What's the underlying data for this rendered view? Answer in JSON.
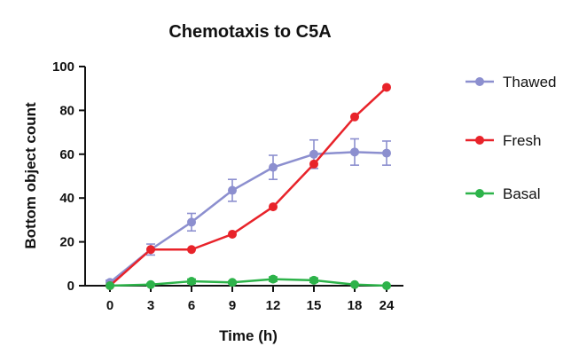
{
  "chart_data": {
    "type": "line",
    "title": "Chemotaxis to C5A",
    "xlabel": "Time (h)",
    "ylabel": "Bottom object count",
    "x_ticks": [
      "0",
      "3",
      "6",
      "9",
      "12",
      "15",
      "18",
      "24"
    ],
    "y_ticks": [
      "0",
      "20",
      "40",
      "60",
      "80",
      "100"
    ],
    "ylim": [
      0,
      100
    ],
    "grid": false,
    "legend_position": "right",
    "series": [
      {
        "name": "Thawed",
        "color": "#8c8fcf",
        "marker": "circle",
        "error_bars": true,
        "values": [
          1.5,
          16.5,
          29,
          43.5,
          54,
          60,
          61,
          60.5
        ],
        "errors": [
          1,
          2.5,
          4,
          5,
          5.5,
          6.5,
          6,
          5.5
        ]
      },
      {
        "name": "Fresh",
        "color": "#e8232a",
        "marker": "circle",
        "error_bars": false,
        "values": [
          0,
          16.5,
          16.5,
          23.5,
          36,
          55.5,
          77,
          90.5
        ]
      },
      {
        "name": "Basal",
        "color": "#2db34a",
        "marker": "circle",
        "error_bars": true,
        "values": [
          0,
          0.5,
          2,
          1.5,
          3,
          2.5,
          0.5,
          0
        ],
        "errors": [
          0,
          0.5,
          1,
          0.5,
          1,
          1,
          0,
          0
        ]
      }
    ]
  }
}
